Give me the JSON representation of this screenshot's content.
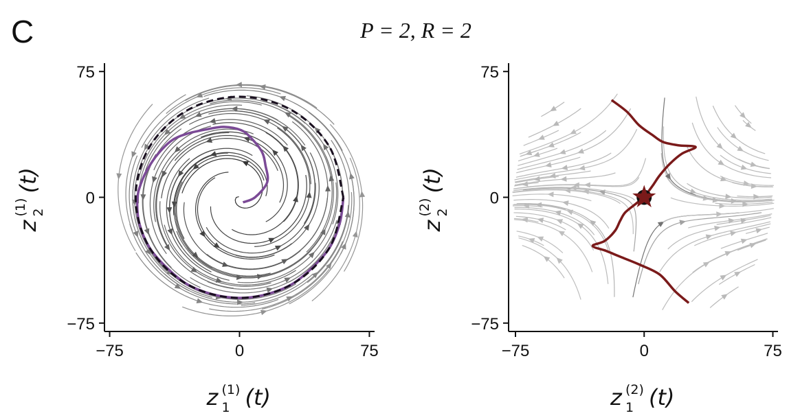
{
  "figure": {
    "panel": "C",
    "title": "P = 2, R = 2"
  },
  "chart_data": [
    {
      "type": "streamplot",
      "xlim": [
        -78,
        78
      ],
      "ylim": [
        -80,
        80
      ],
      "xticks": [
        {
          "value": -75,
          "label": "−75"
        },
        0,
        75
      ],
      "yticks": [
        {
          "value": -75,
          "label": "−75"
        },
        0,
        75
      ],
      "xlabel": {
        "base": "z",
        "sub": "1",
        "sup": "(1)",
        "arg": "(t)"
      },
      "ylabel": {
        "base": "z",
        "sub": "2",
        "sup": "(1)",
        "arg": "(t)"
      },
      "field": "spiral",
      "series": [
        {
          "style": "solid",
          "color": "#7b4a96",
          "x": [
            2,
            9,
            16,
            15,
            13,
            7,
            1,
            -9,
            -19,
            -30,
            -39,
            -47,
            -53,
            -57,
            -59,
            -58,
            -52,
            -42,
            -30,
            -15,
            0,
            15,
            30,
            42,
            52,
            58,
            60
          ],
          "y": [
            -3,
            0,
            9,
            19,
            27,
            35,
            40,
            42,
            40.5,
            38,
            34,
            26,
            17,
            8,
            -1,
            -15,
            -30,
            -42,
            -52,
            -58,
            -60,
            -58,
            -52,
            -42,
            -30,
            -15,
            0
          ]
        },
        {
          "style": "dashed",
          "color": "#1a1020",
          "x": [
            60,
            52,
            30,
            0,
            -30,
            -52,
            -60,
            -52,
            -30,
            0,
            30,
            52,
            60
          ],
          "y": [
            0,
            30,
            52,
            60,
            52,
            30,
            0,
            -30,
            -52,
            -60,
            -52,
            -30,
            0
          ]
        }
      ]
    },
    {
      "type": "streamplot",
      "xlim": [
        -79,
        78
      ],
      "ylim": [
        -80,
        80
      ],
      "xticks": [
        {
          "value": -75,
          "label": "−75"
        },
        0,
        75
      ],
      "yticks": [
        {
          "value": -75,
          "label": "−75"
        },
        0,
        75
      ],
      "xlabel": {
        "base": "z",
        "sub": "1",
        "sup": "(2)",
        "arg": "(t)"
      },
      "ylabel": {
        "base": "z",
        "sub": "2",
        "sup": "(2)",
        "arg": "(t)"
      },
      "field": "saddle",
      "fixed_point": {
        "x": 0,
        "y": 0
      },
      "series": [
        {
          "style": "solid",
          "color": "#7a1a1a",
          "x": [
            -19,
            -10,
            -3,
            5,
            11,
            20,
            30,
            22,
            15,
            9,
            5,
            0
          ],
          "y": [
            58,
            51,
            43,
            37,
            33,
            31,
            30,
            26,
            20,
            13,
            7,
            0
          ]
        },
        {
          "style": "solid",
          "color": "#7a1a1a",
          "x": [
            0,
            -5,
            -11,
            -14,
            -17,
            -23,
            -30,
            -22,
            -15,
            -3,
            9,
            18,
            26
          ],
          "y": [
            0,
            -4,
            -9,
            -14,
            -20,
            -26,
            -29,
            -32,
            -35,
            -40,
            -46,
            -56,
            -63
          ]
        }
      ]
    }
  ]
}
